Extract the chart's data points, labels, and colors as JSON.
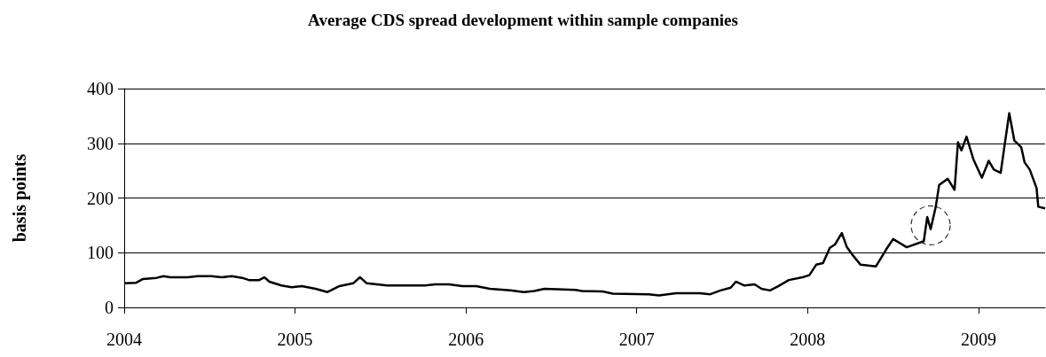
{
  "chart_data": {
    "type": "line",
    "title": "Average CDS spread development within sample companies",
    "ylabel": "basis points",
    "xlim": [
      2004,
      2009.39
    ],
    "xticks": [
      2004,
      2005,
      2006,
      2007,
      2008,
      2009
    ],
    "ylim": [
      0,
      400
    ],
    "yticks": [
      0,
      100,
      200,
      300,
      400
    ],
    "grid": "y",
    "marker": "none",
    "line_style": "solid",
    "series": [
      {
        "color": "#000000",
        "x": [
          2004.0,
          2004.07,
          2004.11,
          2004.19,
          2004.23,
          2004.27,
          2004.37,
          2004.43,
          2004.51,
          2004.57,
          2004.63,
          2004.69,
          2004.73,
          2004.79,
          2004.82,
          2004.85,
          2004.92,
          2004.98,
          2005.04,
          2005.12,
          2005.19,
          2005.26,
          2005.34,
          2005.38,
          2005.42,
          2005.54,
          2005.76,
          2005.82,
          2005.9,
          2005.98,
          2006.06,
          2006.14,
          2006.26,
          2006.34,
          2006.4,
          2006.46,
          2006.64,
          2006.68,
          2006.8,
          2006.86,
          2007.07,
          2007.13,
          2007.23,
          2007.37,
          2007.43,
          2007.49,
          2007.55,
          2007.58,
          2007.63,
          2007.69,
          2007.73,
          2007.78,
          2007.83,
          2007.89,
          2007.97,
          2008.01,
          2008.05,
          2008.09,
          2008.13,
          2008.16,
          2008.2,
          2008.23,
          2008.26,
          2008.31,
          2008.4,
          2008.46,
          2008.5,
          2008.58,
          2008.68,
          2008.7,
          2008.72,
          2008.75,
          2008.77,
          2008.82,
          2008.86,
          2008.88,
          2008.9,
          2008.93,
          2008.97,
          2009.02,
          2009.06,
          2009.09,
          2009.13,
          2009.15,
          2009.18,
          2009.21,
          2009.25,
          2009.27,
          2009.3,
          2009.34,
          2009.35,
          2009.39
        ],
        "values": [
          44,
          45,
          52,
          54,
          57,
          55,
          55,
          57,
          57,
          55,
          57,
          54,
          50,
          50,
          55,
          47,
          40,
          37,
          39,
          34,
          28,
          39,
          44,
          55,
          44,
          40,
          40,
          42,
          42,
          39,
          39,
          34,
          31,
          28,
          30,
          34,
          32,
          30,
          29,
          25,
          24,
          22,
          26,
          26,
          24,
          31,
          36,
          47,
          40,
          42,
          34,
          31,
          39,
          50,
          55,
          59,
          78,
          81,
          109,
          115,
          136,
          110,
          97,
          78,
          75,
          106,
          125,
          110,
          121,
          165,
          143,
          184,
          224,
          235,
          215,
          302,
          287,
          312,
          271,
          237,
          268,
          252,
          246,
          290,
          355,
          305,
          293,
          265,
          252,
          218,
          184,
          181
        ]
      }
    ]
  }
}
